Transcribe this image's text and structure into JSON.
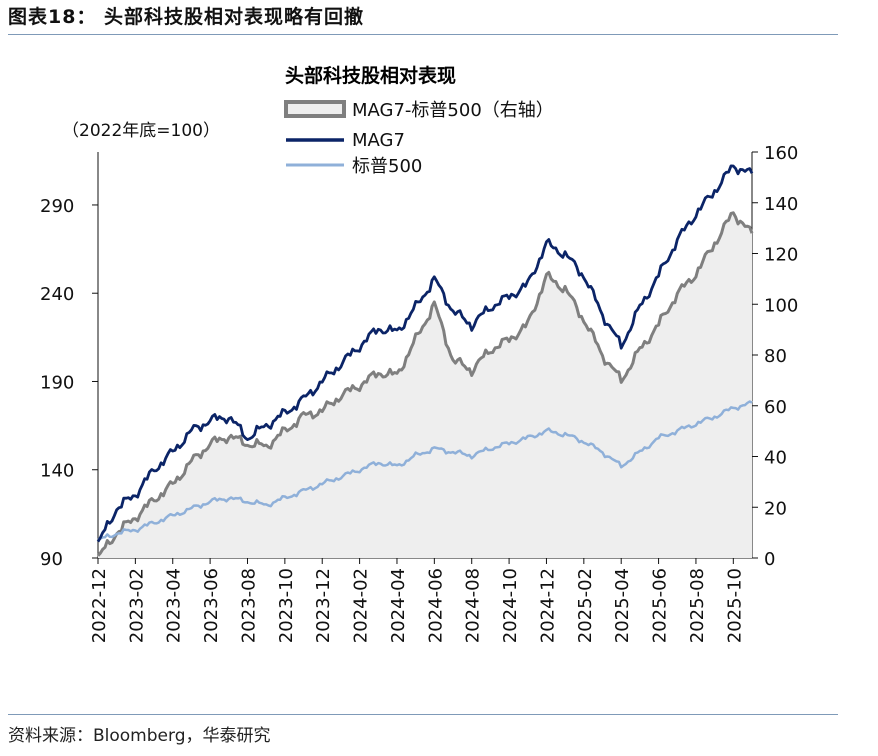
{
  "header": {
    "figure_title": "图表18：  头部科技股相对表现略有回撤",
    "source": "资料来源：Bloomberg，华泰研究"
  },
  "colors": {
    "mag7": "#0b2467",
    "sp500": "#8fb0d9",
    "relative_line": "#7f7f7f",
    "relative_fill": "#eeeeee",
    "rule": "#7f9ab8"
  },
  "chart_data": {
    "type": "line",
    "title": "头部科技股相对表现",
    "left_axis_label": "（2022年底=100）",
    "left_ylim": [
      90,
      320
    ],
    "left_ticks": [
      "90",
      "140",
      "190",
      "240",
      "290"
    ],
    "right_ylim": [
      0,
      160
    ],
    "right_ticks": [
      "0",
      "20",
      "40",
      "60",
      "80",
      "100",
      "120",
      "140",
      "160"
    ],
    "x_ticks": [
      "2022-12",
      "2023-02",
      "2023-04",
      "2023-06",
      "2023-08",
      "2023-10",
      "2023-12",
      "2024-02",
      "2024-04",
      "2024-06",
      "2024-08",
      "2024-10",
      "2024-12",
      "2025-02",
      "2025-04",
      "2025-06",
      "2025-08",
      "2025-10"
    ],
    "x_months": [
      "2022-12",
      "2023-01",
      "2023-02",
      "2023-03",
      "2023-04",
      "2023-05",
      "2023-06",
      "2023-07",
      "2023-08",
      "2023-09",
      "2023-10",
      "2023-11",
      "2023-12",
      "2024-01",
      "2024-02",
      "2024-03",
      "2024-04",
      "2024-05",
      "2024-06",
      "2024-07",
      "2024-08",
      "2024-09",
      "2024-10",
      "2024-11",
      "2024-12",
      "2025-01",
      "2025-02",
      "2025-03",
      "2025-04",
      "2025-05",
      "2025-06",
      "2025-07",
      "2025-08",
      "2025-09",
      "2025-10",
      "2025-11"
    ],
    "series": [
      {
        "name": "MAG7-标普500（右轴）",
        "axis": "right",
        "style": "area",
        "values": [
          0,
          10,
          16,
          23,
          29,
          38,
          45,
          48,
          45,
          44,
          50,
          56,
          58,
          64,
          68,
          73,
          72,
          86,
          100,
          78,
          74,
          82,
          86,
          92,
          111,
          106,
          94,
          80,
          70,
          82,
          92,
          104,
          112,
          124,
          136,
          128
        ]
      },
      {
        "name": "MAG7",
        "axis": "left",
        "style": "line",
        "values": [
          98,
          118,
          126,
          140,
          150,
          162,
          168,
          170,
          158,
          165,
          172,
          180,
          190,
          200,
          210,
          220,
          218,
          232,
          248,
          230,
          222,
          232,
          238,
          245,
          268,
          262,
          250,
          228,
          210,
          232,
          250,
          270,
          285,
          298,
          312,
          308
        ]
      },
      {
        "name": "标普500",
        "axis": "left",
        "style": "line",
        "values": [
          100,
          104,
          106,
          110,
          114,
          118,
          122,
          124,
          122,
          120,
          124,
          128,
          132,
          136,
          140,
          144,
          142,
          148,
          152,
          150,
          148,
          152,
          155,
          158,
          162,
          160,
          156,
          150,
          142,
          150,
          158,
          162,
          166,
          170,
          175,
          178
        ]
      }
    ]
  }
}
